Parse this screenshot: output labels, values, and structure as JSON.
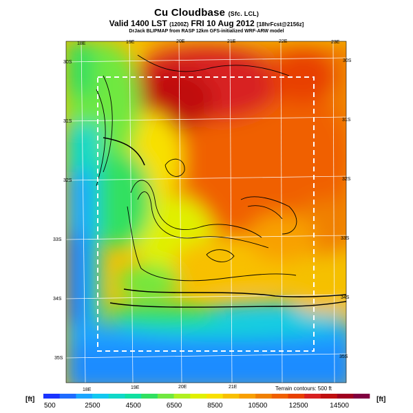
{
  "title": "Cu Cloudbase",
  "title_suffix": "(Sfc. LCL)",
  "valid_line": "Valid 1400 LST",
  "valid_paren": "(1200Z)",
  "valid_date": "FRI 10 Aug 2012",
  "valid_tail": "[18hrFcst@2156z]",
  "credit": "DrJack BLIPMAP from RASP 12km GFS-initialized WRF-ARW model",
  "lon_top": [
    "18E",
    "19E",
    "20E",
    "21E",
    "22E",
    "23E"
  ],
  "lon_bottom": [
    "18E",
    "19E",
    "20E",
    "21E"
  ],
  "lat_left": [
    "30S",
    "31S",
    "32S",
    "33S",
    "34S",
    "35S"
  ],
  "lat_right": [
    "30S",
    "31S",
    "32S",
    "33S",
    "34S",
    "35S"
  ],
  "terrain_note": "Terrain contours: 500 ft",
  "unit_left": "[ft]",
  "unit_right": "[ft]",
  "colorbar_labels": [
    "500",
    "2500",
    "4500",
    "6500",
    "8500",
    "10500",
    "12500",
    "14500"
  ],
  "colorbar_colors": [
    "#1a33ff",
    "#1f6cff",
    "#1aa6ff",
    "#12c8f0",
    "#10d8c8",
    "#10e0a0",
    "#30e060",
    "#70e840",
    "#b0f020",
    "#e0f000",
    "#f8e000",
    "#f8c000",
    "#f8a000",
    "#f08000",
    "#f06000",
    "#e84000",
    "#d82020",
    "#c01010",
    "#a00020",
    "#800040"
  ],
  "boundary_style": "white dashed rectangle"
}
